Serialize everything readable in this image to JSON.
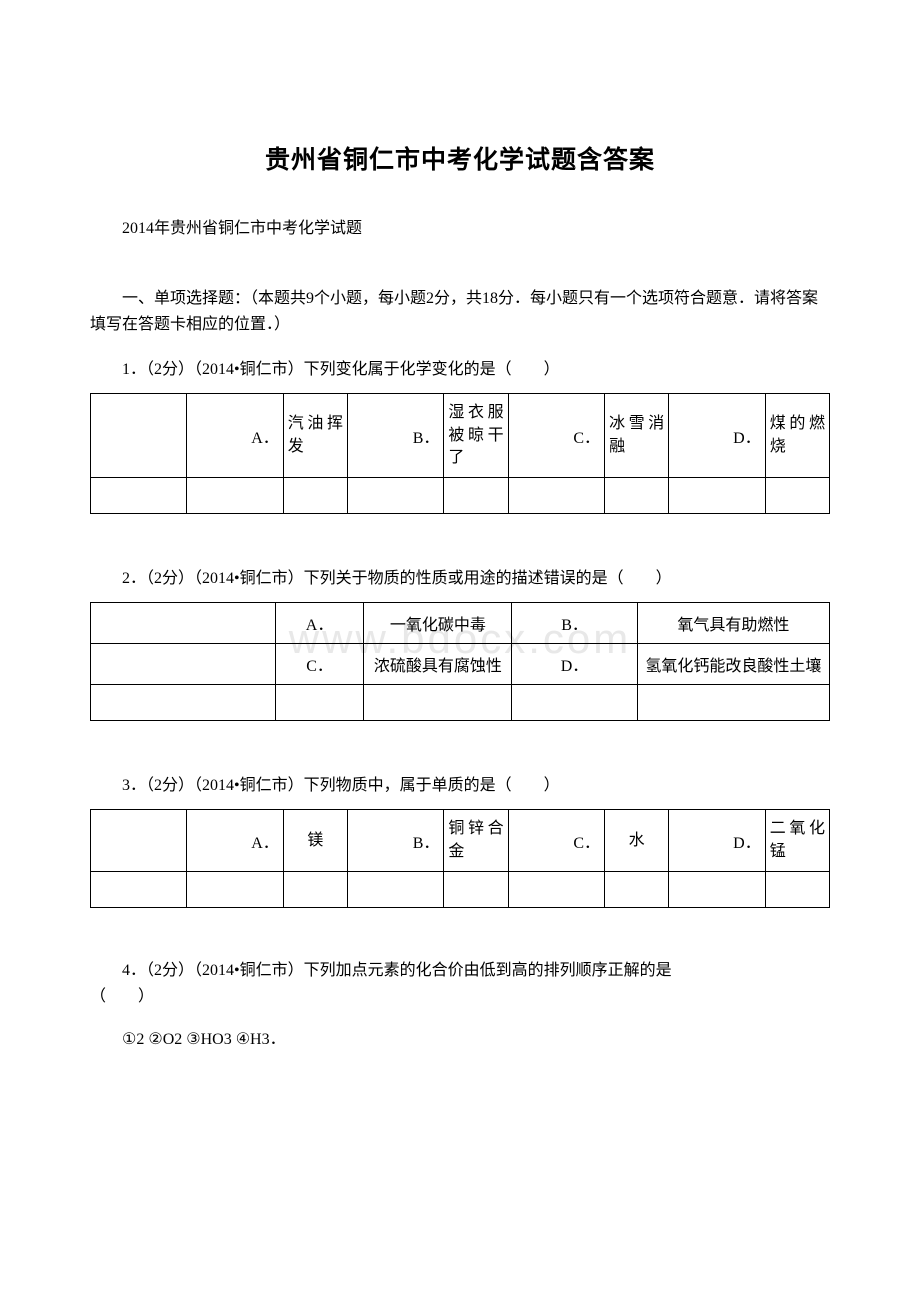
{
  "title": "贵州省铜仁市中考化学试题含答案",
  "subtitle": "2014年贵州省铜仁市中考化学试题",
  "watermark": "www.bdocx.com",
  "sectionHeader": "一、单项选择题：（本题共9个小题，每小题2分，共18分．每小题只有一个选项符合题意．请将答案填写在答题卡相应的位置．）",
  "q1": {
    "text": "1．（2分）（2014•铜仁市）下列变化属于化学变化的是（　　）",
    "options": {
      "a_label": "A．",
      "a_value": "汽油挥发",
      "b_label": "B．",
      "b_value": "湿衣服被晾干了",
      "c_label": "C．",
      "c_value": "冰雪消融",
      "d_label": "D．",
      "d_value": "煤的燃烧"
    }
  },
  "q2": {
    "text": "2．（2分）（2014•铜仁市）下列关于物质的性质或用途的描述错误的是（　　）",
    "options": {
      "a_label": "A．",
      "a_value": "一氧化碳中毒",
      "b_label": "B．",
      "b_value": "氧气具有助燃性",
      "c_label": "C．",
      "c_value": "浓硫酸具有腐蚀性",
      "d_label": "D．",
      "d_value": "氢氧化钙能改良酸性土壤"
    }
  },
  "q3": {
    "text": "3．（2分）（2014•铜仁市）下列物质中，属于单质的是（　　）",
    "options": {
      "a_label": "A．",
      "a_value": "镁",
      "b_label": "B．",
      "b_value": "铜锌合金",
      "c_label": "C．",
      "c_value": "水",
      "d_label": "D．",
      "d_value": "二氧化锰"
    }
  },
  "q4": {
    "text1": "4．（2分）（2014•铜仁市）下列加点元素的化合价由低到高的排列顺序正解的是",
    "text2": "（　　）",
    "options": "①2 ②O2 ③HO3 ④H3．"
  }
}
